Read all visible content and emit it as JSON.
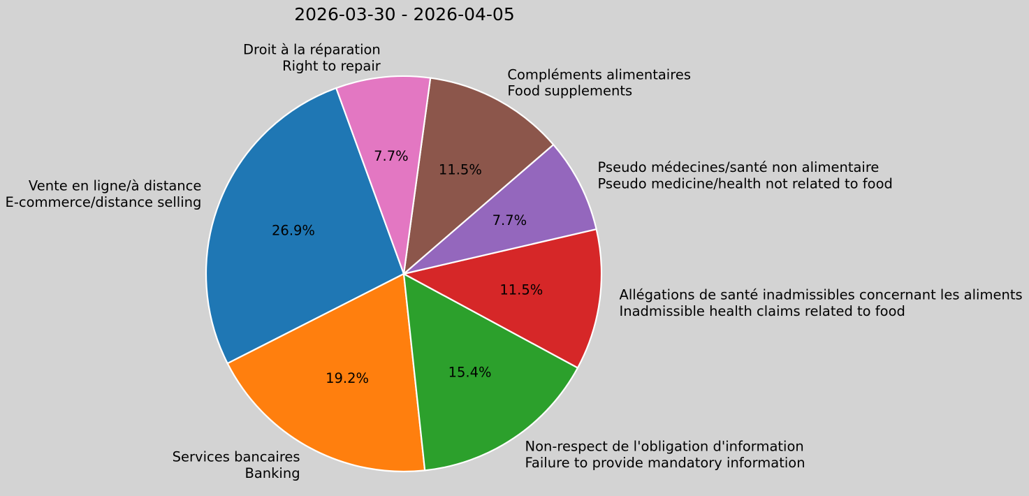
{
  "chart_data": {
    "type": "pie",
    "title": "2026-03-30 - 2026-04-05",
    "background_color": "#d3d3d3",
    "wedge_edge_color": "#ffffff",
    "text_color": "#000000",
    "start_angle": 110,
    "direction": "counterclockwise",
    "label_distance": 1.1,
    "pct_distance": 0.6,
    "legend": "none",
    "slices": [
      {
        "key": "e-commerce",
        "label_fr": "Vente en ligne/à distance",
        "label_en": "E-commerce/distance selling",
        "value": 26.9,
        "pct_label": "26.9%",
        "color": "#1f77b4"
      },
      {
        "key": "banking",
        "label_fr": "Services bancaires",
        "label_en": "Banking",
        "value": 19.2,
        "pct_label": "19.2%",
        "color": "#ff7f0e"
      },
      {
        "key": "mandatory-information",
        "label_fr": "Non-respect de l'obligation d'information",
        "label_en": "Failure to provide mandatory information",
        "value": 15.4,
        "pct_label": "15.4%",
        "color": "#2ca02c"
      },
      {
        "key": "health-claims-food",
        "label_fr": "Allégations de santé inadmissibles concernant les aliments",
        "label_en": "Inadmissible health claims related to food",
        "value": 11.5,
        "pct_label": "11.5%",
        "color": "#d62728"
      },
      {
        "key": "pseudo-medicine",
        "label_fr": "Pseudo médecines/santé non alimentaire",
        "label_en": "Pseudo medicine/health not related to food",
        "value": 7.7,
        "pct_label": "7.7%",
        "color": "#9467bd"
      },
      {
        "key": "food-supplements",
        "label_fr": "Compléments alimentaires",
        "label_en": "Food supplements",
        "value": 11.5,
        "pct_label": "11.5%",
        "color": "#8c564b"
      },
      {
        "key": "right-to-repair",
        "label_fr": "Droit à la réparation",
        "label_en": "Right to repair",
        "value": 7.7,
        "pct_label": "7.7%",
        "color": "#e377c2"
      }
    ]
  }
}
